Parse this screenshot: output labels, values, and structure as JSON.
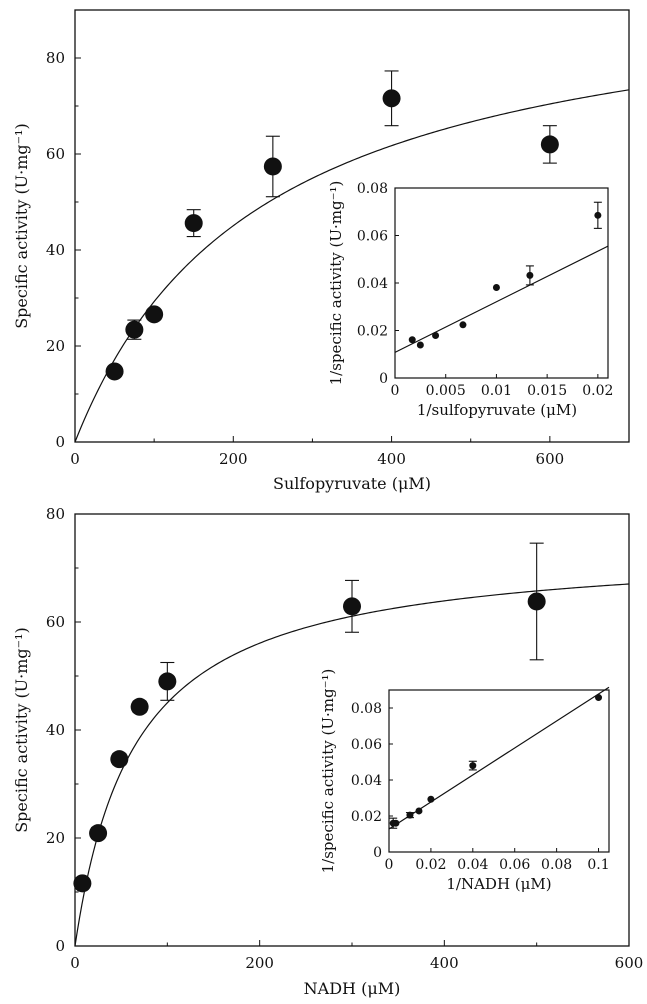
{
  "chart_data": [
    {
      "type": "scatter",
      "xlabel": "Sulfopyruvate (μM)",
      "ylabel": "Specific activity (U·mg⁻¹)",
      "xlim": [
        0,
        700
      ],
      "ylim": [
        0,
        90
      ],
      "xticks": [
        0,
        200,
        400,
        600
      ],
      "xtick_labels": [
        "0",
        "200",
        "400",
        "600"
      ],
      "yticks": [
        0,
        20,
        40,
        60,
        80
      ],
      "ytick_labels": [
        "0",
        "20",
        "40",
        "60",
        "80"
      ],
      "grid": false,
      "points": [
        {
          "x": 50,
          "y": 14.7,
          "err": 1.0
        },
        {
          "x": 75,
          "y": 23.4,
          "err": 2.0
        },
        {
          "x": 100,
          "y": 26.6,
          "err": 1.0
        },
        {
          "x": 150,
          "y": 45.6,
          "err": 2.8
        },
        {
          "x": 250,
          "y": 57.4,
          "err": 6.3
        },
        {
          "x": 400,
          "y": 71.6,
          "err": 5.7
        },
        {
          "x": 600,
          "y": 62.0,
          "err": 3.9
        }
      ],
      "fit": {
        "model": "michaelis-menten",
        "vmax": 98,
        "km": 235
      },
      "inset": {
        "type": "scatter",
        "xlabel": "1/sulfopyruvate (μM)",
        "ylabel": "1/specific activity (U·mg⁻¹)",
        "xlim": [
          0,
          0.021
        ],
        "ylim": [
          0,
          0.08
        ],
        "xticks": [
          0,
          0.005,
          0.01,
          0.015,
          0.02
        ],
        "xtick_labels": [
          "0",
          "0.005",
          "0.01",
          "0.015",
          "0.02"
        ],
        "yticks": [
          0,
          0.02,
          0.04,
          0.06,
          0.08
        ],
        "ytick_labels": [
          "0",
          "0.02",
          "0.04",
          "0.06",
          "0.08"
        ],
        "points": [
          {
            "x": 0.0017,
            "y": 0.0161,
            "err": 0.0
          },
          {
            "x": 0.0025,
            "y": 0.0139,
            "err": 0.0
          },
          {
            "x": 0.004,
            "y": 0.0179,
            "err": 0.0
          },
          {
            "x": 0.0067,
            "y": 0.0224,
            "err": 0.0
          },
          {
            "x": 0.01,
            "y": 0.0381,
            "err": 0.0
          },
          {
            "x": 0.0133,
            "y": 0.0432,
            "err": 0.004
          },
          {
            "x": 0.02,
            "y": 0.0685,
            "err": 0.0055
          }
        ],
        "fit": {
          "model": "linear",
          "slope": 2.13,
          "intercept": 0.0108
        }
      }
    },
    {
      "type": "scatter",
      "xlabel": "NADH (μM)",
      "ylabel": "Specific activity (U·mg⁻¹)",
      "xlim": [
        0,
        600
      ],
      "ylim": [
        0,
        80
      ],
      "xticks": [
        0,
        200,
        400,
        600
      ],
      "xtick_labels": [
        "0",
        "200",
        "400",
        "600"
      ],
      "yticks": [
        0,
        20,
        40,
        60,
        80
      ],
      "ytick_labels": [
        "0",
        "20",
        "40",
        "60",
        "80"
      ],
      "grid": false,
      "points": [
        {
          "x": 8,
          "y": 11.6,
          "err": 0.0
        },
        {
          "x": 25,
          "y": 20.9,
          "err": 1.0
        },
        {
          "x": 48,
          "y": 34.6,
          "err": 1.0
        },
        {
          "x": 70,
          "y": 44.3,
          "err": 1.0
        },
        {
          "x": 100,
          "y": 49.0,
          "err": 3.5
        },
        {
          "x": 300,
          "y": 62.9,
          "err": 4.8
        },
        {
          "x": 500,
          "y": 63.8,
          "err": 10.8
        }
      ],
      "fit": {
        "model": "michaelis-menten",
        "vmax": 74.3,
        "km": 65
      },
      "inset": {
        "type": "scatter",
        "xlabel": "1/NADH (μM)",
        "ylabel": "1/specific activity (U·mg⁻¹)",
        "xlim": [
          0,
          0.105
        ],
        "ylim": [
          0,
          0.09
        ],
        "xticks": [
          0,
          0.02,
          0.04,
          0.06,
          0.08,
          0.1
        ],
        "xtick_labels": [
          "0",
          "0.02",
          "0.04",
          "0.06",
          "0.08",
          "0.1"
        ],
        "yticks": [
          0,
          0.02,
          0.04,
          0.06,
          0.08
        ],
        "ytick_labels": [
          "0",
          "0.02",
          "0.04",
          "0.06",
          "0.08"
        ],
        "points": [
          {
            "x": 0.002,
            "y": 0.016,
            "err": 0.0028
          },
          {
            "x": 0.0033,
            "y": 0.016,
            "err": 0.0
          },
          {
            "x": 0.01,
            "y": 0.0205,
            "err": 0.0014
          },
          {
            "x": 0.0143,
            "y": 0.0228,
            "err": 0.0
          },
          {
            "x": 0.02,
            "y": 0.0293,
            "err": 0.0
          },
          {
            "x": 0.04,
            "y": 0.048,
            "err": 0.0024
          },
          {
            "x": 0.1,
            "y": 0.0858,
            "err": 0.0
          }
        ],
        "fit": {
          "model": "linear",
          "slope": 0.75,
          "intercept": 0.0128
        }
      }
    }
  ]
}
